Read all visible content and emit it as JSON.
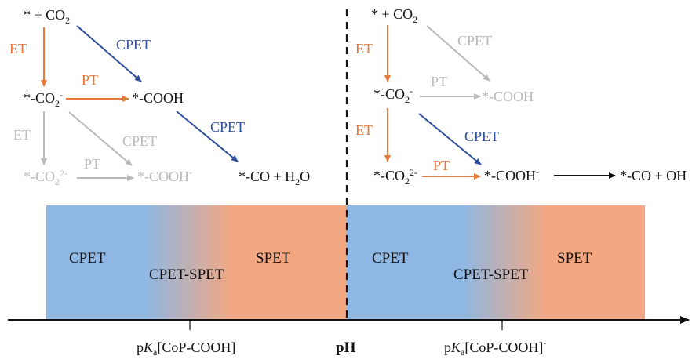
{
  "colors": {
    "orange": "#e8773a",
    "blue": "#2f4f9a",
    "gray": "#b9b9b9",
    "black": "#111111",
    "band_blue": "#8fb7e3",
    "band_orange": "#f3a882"
  },
  "left": {
    "start": "* + CO",
    "start_sub": "2",
    "co2": "*-CO",
    "co2_sub": "2",
    "co2_sup": "-",
    "cooh": "*-COOH",
    "co2_2": "*-CO",
    "co2_2_sub": "2",
    "co2_2_sup": "2-",
    "cooh_minus": "*-COOH",
    "cooh_minus_sup": "-",
    "product": "*-CO + H",
    "product_sub": "2",
    "product_tail": "O",
    "label_et_1": "ET",
    "label_cpet_1": "CPET",
    "label_pt_1": "PT",
    "label_cpet_2": "CPET",
    "label_et_2": "ET",
    "label_cpet_3": "CPET",
    "label_pt_2": "PT"
  },
  "right": {
    "start": "* + CO",
    "start_sub": "2",
    "co2": "*-CO",
    "co2_sub": "2",
    "co2_sup": "-",
    "cooh": "*-COOH",
    "co2_2": "*-CO",
    "co2_2_sub": "2",
    "co2_2_sup": "2-",
    "cooh_minus": "*-COOH",
    "cooh_minus_sup": "-",
    "product": "*-CO + OH",
    "label_et_1": "ET",
    "label_cpet_1": "CPET",
    "label_pt_1": "PT",
    "label_et_2": "ET",
    "label_cpet_2": "CPET",
    "label_pt_2": "PT"
  },
  "bands": {
    "left": {
      "cpet": "CPET",
      "mix": "CPET-SPET",
      "spet": "SPET"
    },
    "right": {
      "cpet": "CPET",
      "mix": "CPET-SPET",
      "spet": "SPET"
    }
  },
  "axis": {
    "pka_left_p": "p",
    "pka_left_k": "K",
    "pka_left_sub": "a",
    "pka_left_tail": "[CoP-COOH]",
    "ph": "pH",
    "pka_right_p": "p",
    "pka_right_k": "K",
    "pka_right_sub": "a",
    "pka_right_tail": "[CoP-COOH]",
    "pka_right_sup": "-"
  }
}
